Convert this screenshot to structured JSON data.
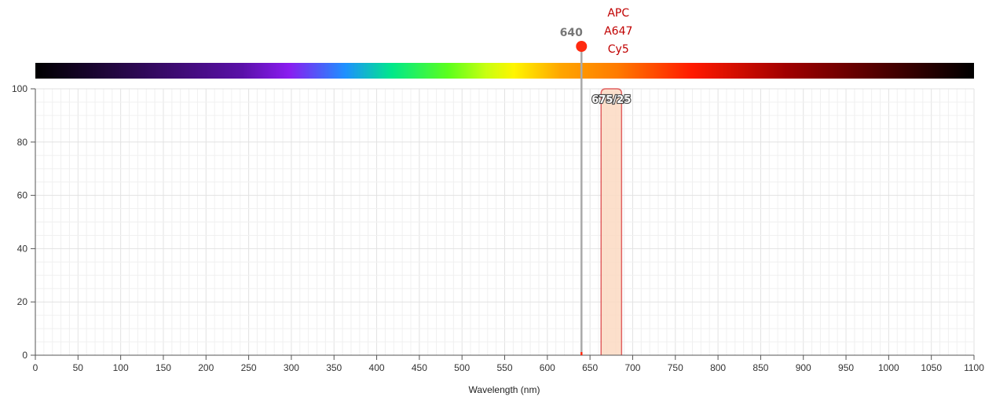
{
  "chart_data": {
    "type": "area",
    "title": "",
    "xlabel": "Wavelength (nm)",
    "ylabel": "",
    "xlim": [
      0,
      1100
    ],
    "ylim": [
      0,
      100
    ],
    "x_ticks": [
      0,
      50,
      100,
      150,
      200,
      250,
      300,
      350,
      400,
      450,
      500,
      550,
      600,
      650,
      700,
      750,
      800,
      850,
      900,
      950,
      1000,
      1050,
      1100
    ],
    "y_ticks": [
      0,
      20,
      40,
      60,
      80,
      100
    ],
    "grid": true,
    "spectrum_bar": true,
    "laser": {
      "wavelength": 640,
      "label": "640",
      "color": "#ff2a10"
    },
    "dyes": {
      "labels": [
        "APC",
        "A647",
        "Cy5"
      ],
      "color": "#c00000"
    },
    "filters": [
      {
        "label": "675/25",
        "center": 675,
        "bandwidth": 25,
        "transmission": 100,
        "fill": "#fcd9c2",
        "stroke": "#e06060"
      }
    ]
  }
}
